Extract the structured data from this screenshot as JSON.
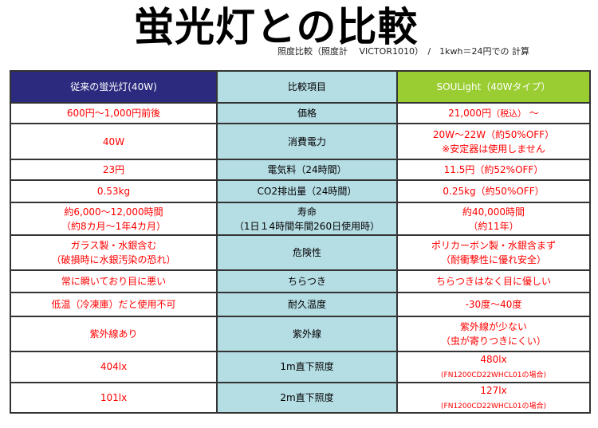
{
  "title": "蛍光灯との比較",
  "subtitle": "照度比較（照度計　 VICTOR1010）　/　1kwh＝24円での 計算",
  "table": {
    "headers": {
      "old": "従来の蛍光灯(40W)",
      "item": "比較項目",
      "new": "SOULight（40Wタイプ）"
    },
    "rows": [
      {
        "old": [
          "600円〜1,000円前後"
        ],
        "item": [
          "価格"
        ],
        "new": [
          "21,000円"
        ],
        "new_note": "（税込）",
        "new_tail": "〜"
      },
      {
        "old": [
          "40W"
        ],
        "item": [
          "消費電力"
        ],
        "new": [
          "20W〜22W（約50%OFF）",
          "※安定器は使用しません"
        ]
      },
      {
        "old": [
          "23円"
        ],
        "item": [
          "電気料（24時間）"
        ],
        "new": [
          "11.5円（約52%OFF）"
        ]
      },
      {
        "old": [
          "0.53kg"
        ],
        "item": [
          "CO2排出量（24時間）"
        ],
        "new": [
          "0.25kg（約50%OFF）"
        ]
      },
      {
        "old": [
          "約6,000〜12,000時間",
          "（約8カ月〜1年4カ月）"
        ],
        "item": [
          "寿命",
          "（1日１4時間年間260日使用時）"
        ],
        "new": [
          "約40,000時間",
          "（約11年）"
        ]
      },
      {
        "old": [
          "ガラス製・水銀含む",
          "（破損時に水銀汚染の恐れ）"
        ],
        "item": [
          "危険性"
        ],
        "new": [
          "ポリカーボン製・水銀含まず",
          "（耐衝撃性に優れ安全）"
        ],
        "old_bold": true,
        "new_bold": true
      },
      {
        "old": [
          "常に瞬いており目に悪い"
        ],
        "item": [
          "ちらつき"
        ],
        "new": [
          "ちらつきはなく目に優しい"
        ],
        "old_bold": true,
        "new_bold": true
      },
      {
        "old": [
          "低温（冷凍庫）だと使用不可"
        ],
        "item": [
          "耐久温度"
        ],
        "new": [
          "-30度〜40度"
        ],
        "old_bold": true,
        "new_bold": true
      },
      {
        "old": [
          "紫外線あり"
        ],
        "item": [
          "紫外線"
        ],
        "new": [
          "紫外線が少ない",
          "（虫が寄りつきにくい）"
        ],
        "old_bold": true,
        "new_bold": true
      },
      {
        "old": [
          "404lx"
        ],
        "item": [
          "1m直下照度"
        ],
        "new": [
          "480lx"
        ],
        "new_note": "(FN1200CD22WHCL01の場合)"
      },
      {
        "old": [
          "101lx"
        ],
        "item": [
          "2m直下照度"
        ],
        "new": [
          "127lx"
        ],
        "new_note": "(FN1200CD22WHCL01の場合)"
      }
    ]
  },
  "colors": {
    "header_old": "#2b2a7e",
    "header_item": "#b5dde4",
    "header_new": "#9acd32",
    "value_text": "#ff0000"
  }
}
